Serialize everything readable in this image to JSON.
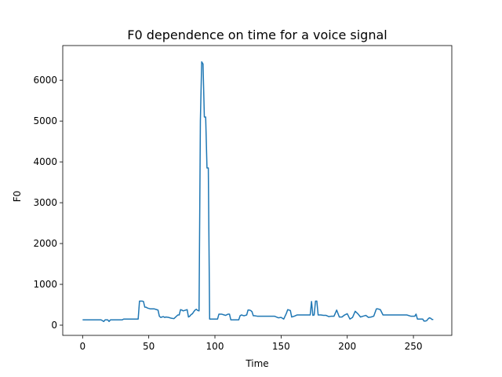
{
  "chart_data": {
    "type": "line",
    "title": "F0 dependence on time for a voice signal",
    "xlabel": "Time",
    "ylabel": "F0",
    "xlim": [
      -15,
      279
    ],
    "ylim": [
      -250,
      6850
    ],
    "xticks": [
      0,
      50,
      100,
      150,
      200,
      250
    ],
    "yticks": [
      0,
      1000,
      2000,
      3000,
      4000,
      5000,
      6000
    ],
    "grid": false,
    "line_color": "#1f77b4",
    "series": [
      {
        "x": [
          0,
          10,
          14,
          16,
          17,
          19,
          20,
          21,
          30,
          31,
          42,
          43,
          45,
          46,
          47,
          48,
          49,
          50,
          51,
          54,
          56,
          57,
          58,
          59,
          60,
          61,
          62,
          63,
          65,
          67,
          69,
          71,
          72,
          73,
          74,
          75,
          76,
          77,
          79,
          80,
          81,
          82,
          83,
          84,
          85,
          86,
          87,
          88,
          89,
          90,
          91,
          92,
          93,
          94,
          95,
          96,
          97,
          98,
          100,
          102,
          103,
          105,
          107,
          108,
          110,
          111,
          112,
          113,
          114,
          115,
          116,
          117,
          118,
          119,
          120,
          122,
          124,
          125,
          126,
          127,
          128,
          129,
          130,
          132,
          134,
          136,
          140,
          145,
          148,
          150,
          152,
          154,
          155,
          157,
          158,
          160,
          162,
          164,
          166,
          168,
          170,
          172,
          173,
          174,
          175,
          176,
          177,
          178,
          180,
          182,
          184,
          186,
          188,
          189,
          190,
          192,
          194,
          196,
          198,
          200,
          202,
          204,
          206,
          208,
          210,
          212,
          214,
          216,
          218,
          220,
          222,
          223,
          225,
          227,
          230,
          235,
          240,
          245,
          248,
          250,
          251,
          252,
          253,
          254,
          255,
          256,
          257,
          258,
          259,
          260,
          261,
          262,
          263,
          264,
          265
        ],
        "y": [
          130,
          130,
          130,
          90,
          130,
          130,
          90,
          130,
          130,
          150,
          150,
          590,
          590,
          580,
          440,
          440,
          420,
          410,
          400,
          400,
          380,
          370,
          220,
          190,
          200,
          210,
          190,
          200,
          190,
          170,
          160,
          220,
          250,
          250,
          380,
          370,
          350,
          360,
          380,
          200,
          220,
          260,
          280,
          330,
          370,
          390,
          360,
          350,
          5000,
          6450,
          6400,
          5100,
          5100,
          3850,
          3850,
          150,
          150,
          150,
          150,
          150,
          270,
          270,
          250,
          240,
          270,
          270,
          130,
          130,
          130,
          130,
          130,
          130,
          130,
          230,
          250,
          230,
          250,
          370,
          370,
          360,
          330,
          230,
          230,
          220,
          220,
          220,
          220,
          220,
          180,
          190,
          150,
          290,
          380,
          360,
          200,
          220,
          250,
          250,
          250,
          250,
          250,
          250,
          580,
          240,
          250,
          590,
          590,
          250,
          250,
          240,
          240,
          210,
          220,
          220,
          220,
          370,
          200,
          200,
          250,
          280,
          150,
          190,
          340,
          280,
          200,
          220,
          240,
          190,
          200,
          220,
          400,
          400,
          380,
          250,
          250,
          250,
          250,
          250,
          220,
          220,
          220,
          270,
          150,
          150,
          150,
          150,
          150,
          100,
          100,
          110,
          150,
          180,
          170,
          140,
          140
        ]
      }
    ]
  }
}
